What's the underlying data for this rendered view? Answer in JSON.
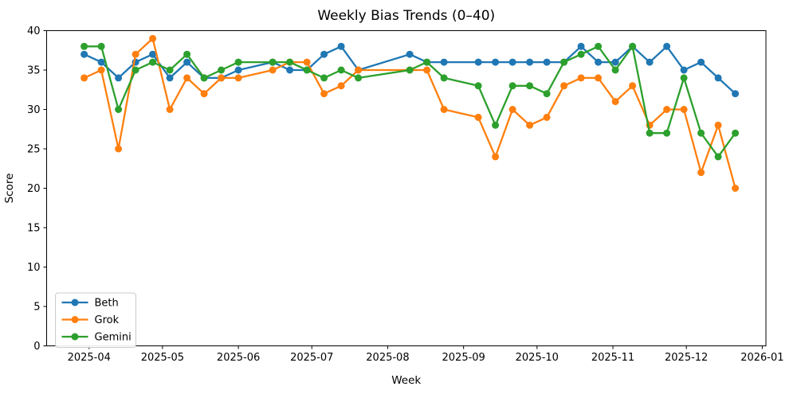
{
  "chart_data": {
    "type": "line",
    "title": "Weekly Bias Trends (0–40)",
    "xlabel": "Week",
    "ylabel": "Score",
    "ylim": [
      0,
      40
    ],
    "grid": false,
    "legend_position": "lower left",
    "yticks": [
      0,
      5,
      10,
      15,
      20,
      25,
      30,
      35,
      40
    ],
    "xticks": [
      "2025-04",
      "2025-05",
      "2025-06",
      "2025-07",
      "2025-08",
      "2025-09",
      "2025-10",
      "2025-11",
      "2025-12",
      "2026-01"
    ],
    "x": [
      "2025-03-30",
      "2025-04-06",
      "2025-04-13",
      "2025-04-20",
      "2025-04-27",
      "2025-05-04",
      "2025-05-11",
      "2025-05-18",
      "2025-05-25",
      "2025-06-01",
      "2025-06-15",
      "2025-06-22",
      "2025-06-29",
      "2025-07-06",
      "2025-07-13",
      "2025-07-20",
      "2025-08-10",
      "2025-08-17",
      "2025-08-24",
      "2025-09-07",
      "2025-09-14",
      "2025-09-21",
      "2025-09-28",
      "2025-10-05",
      "2025-10-12",
      "2025-10-19",
      "2025-10-26",
      "2025-11-02",
      "2025-11-09",
      "2025-11-16",
      "2025-11-23",
      "2025-11-30",
      "2025-12-07",
      "2025-12-14",
      "2025-12-21"
    ],
    "series": [
      {
        "name": "Beth",
        "color": "#1f77b4",
        "values": [
          37,
          36,
          34,
          36,
          37,
          34,
          36,
          34,
          34,
          35,
          36,
          35,
          35,
          37,
          38,
          35,
          37,
          36,
          36,
          36,
          36,
          36,
          36,
          36,
          36,
          38,
          36,
          36,
          38,
          36,
          38,
          35,
          36,
          34,
          32
        ]
      },
      {
        "name": "Grok",
        "color": "#ff7f0e",
        "values": [
          34,
          35,
          25,
          37,
          39,
          30,
          34,
          32,
          34,
          34,
          35,
          36,
          36,
          32,
          33,
          35,
          35,
          35,
          30,
          29,
          24,
          30,
          28,
          29,
          33,
          34,
          34,
          31,
          33,
          28,
          30,
          30,
          22,
          28,
          20
        ]
      },
      {
        "name": "Gemini",
        "color": "#2ca02c",
        "values": [
          38,
          38,
          30,
          35,
          36,
          35,
          37,
          34,
          35,
          36,
          36,
          36,
          35,
          34,
          35,
          34,
          35,
          36,
          34,
          33,
          28,
          33,
          33,
          32,
          36,
          37,
          38,
          35,
          38,
          27,
          27,
          34,
          27,
          24,
          27
        ]
      }
    ]
  }
}
